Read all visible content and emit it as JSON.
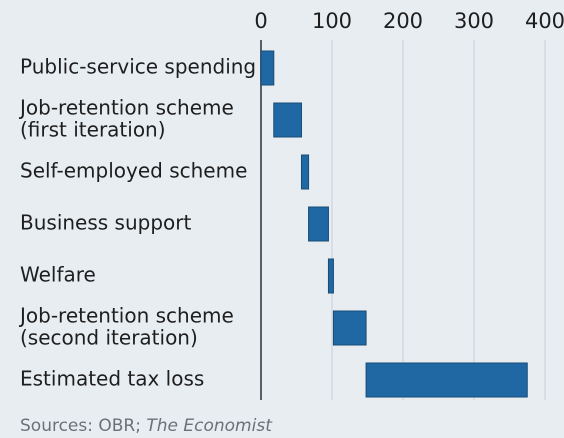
{
  "chart_data": {
    "type": "waterfall",
    "categories": [
      [
        "Public-service spending"
      ],
      [
        "Job-retention scheme",
        "(first iteration)"
      ],
      [
        "Self-employed scheme"
      ],
      [
        "Business support"
      ],
      [
        "Welfare"
      ],
      [
        "Job-retention scheme",
        "(second iteration)"
      ],
      [
        "Estimated tax loss"
      ]
    ],
    "values": [
      18,
      39,
      10,
      28,
      7,
      46,
      227
    ],
    "color": "#1f68a3",
    "xlim": [
      0,
      400
    ],
    "xticks": [
      0,
      100,
      200,
      300,
      400
    ],
    "grid": true,
    "source": {
      "prefix": "Sources: OBR;",
      "publication": "The Economist"
    }
  }
}
